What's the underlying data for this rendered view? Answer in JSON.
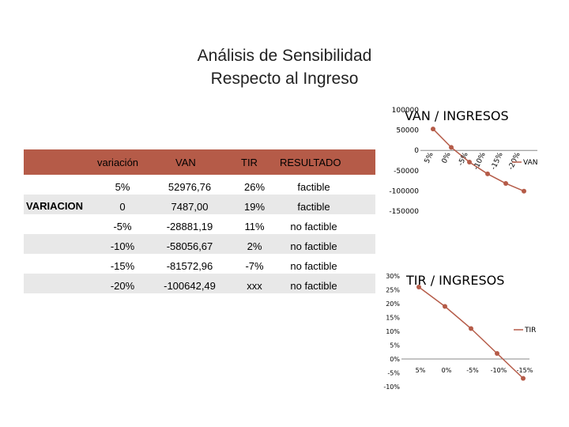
{
  "title": {
    "line1": "Análisis de Sensibilidad",
    "line2": "Respecto al Ingreso"
  },
  "table": {
    "side_label": "VARIACION",
    "headers": [
      "variación",
      "VAN",
      "TIR",
      "RESULTADO"
    ],
    "rows": [
      [
        "5%",
        "52976,76",
        "26%",
        "factible"
      ],
      [
        "0",
        "7487,00",
        "19%",
        "factible"
      ],
      [
        "-5%",
        "-28881,19",
        "11%",
        "no factible"
      ],
      [
        "-10%",
        "-58056,67",
        "2%",
        "no factible"
      ],
      [
        "-15%",
        "-81572,96",
        "-7%",
        "no factible"
      ],
      [
        "-20%",
        "-100642,49",
        "xxx",
        "no factible"
      ]
    ]
  },
  "colors": {
    "accent": "#b55b48",
    "stripe": "#e8e8e8"
  },
  "chart_data": [
    {
      "type": "line",
      "title": "VAN / INGRESOS",
      "categories": [
        "5%",
        "0%",
        "-5%",
        "-10%",
        "-15%",
        "-20%"
      ],
      "series": [
        {
          "name": "VAN",
          "values": [
            52976.76,
            7487.0,
            -28881.19,
            -58056.67,
            -81572.96,
            -100642.49
          ]
        }
      ],
      "ylim": [
        -150000,
        100000
      ],
      "yticks": [
        "100000",
        "50000",
        "0",
        "-50000",
        "-100000",
        "-150000"
      ],
      "legend": "right",
      "grid": false
    },
    {
      "type": "line",
      "title": "TIR / INGRESOS",
      "categories": [
        "5%",
        "0%",
        "-5%",
        "-10%",
        "-15%"
      ],
      "series": [
        {
          "name": "TIR",
          "values": [
            26,
            19,
            11,
            2,
            -7
          ]
        }
      ],
      "ylim": [
        -10,
        30
      ],
      "yticks": [
        "30%",
        "25%",
        "20%",
        "15%",
        "10%",
        "5%",
        "0%",
        "-5%",
        "-10%"
      ],
      "legend": "right",
      "grid": false
    }
  ]
}
